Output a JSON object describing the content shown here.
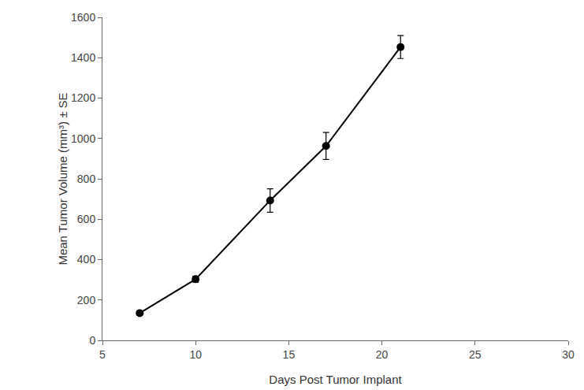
{
  "chart_data": {
    "type": "line",
    "x_label": "Days Post Tumor Implant",
    "y_label": "Mean Tumor Volume (mm³) ± SE",
    "x": [
      7,
      10,
      14,
      17,
      21
    ],
    "values": [
      135,
      303,
      693,
      963,
      1453
    ],
    "error": [
      10,
      15,
      58,
      67,
      57
    ],
    "color": "#000000",
    "marker": "circle",
    "line_style": "solid",
    "xlim": [
      5,
      30
    ],
    "xticks": [
      5,
      10,
      15,
      20,
      25,
      30
    ],
    "ylim": [
      0,
      1600
    ],
    "yticks": [
      0,
      200,
      400,
      600,
      800,
      1000,
      1200,
      1400,
      1600
    ],
    "grid": false
  }
}
